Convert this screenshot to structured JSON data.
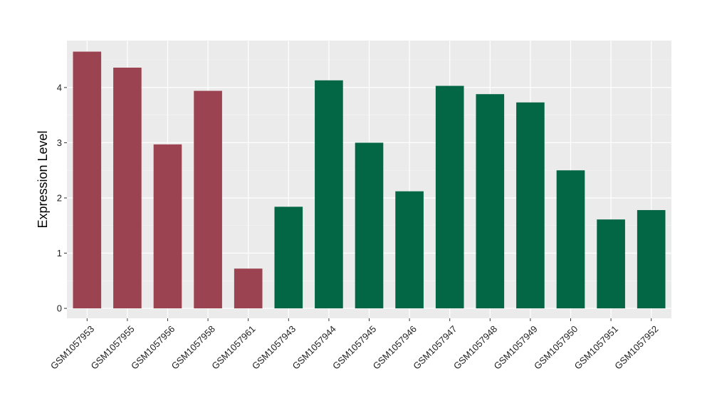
{
  "chart_data": {
    "type": "bar",
    "title": "",
    "xlabel": "",
    "ylabel": "Expression Level",
    "ylim": [
      -0.18,
      4.85
    ],
    "yticks": [
      0,
      1,
      2,
      3,
      4
    ],
    "grid": true,
    "legend": "none",
    "categories": [
      "GSM1057953",
      "GSM1057955",
      "GSM1057956",
      "GSM1057958",
      "GSM1057961",
      "GSM1057943",
      "GSM1057944",
      "GSM1057945",
      "GSM1057946",
      "GSM1057947",
      "GSM1057948",
      "GSM1057949",
      "GSM1057950",
      "GSM1057951",
      "GSM1057952"
    ],
    "values": [
      4.65,
      4.36,
      2.97,
      3.94,
      0.72,
      1.84,
      4.13,
      3.0,
      2.12,
      4.03,
      3.88,
      3.73,
      2.5,
      1.61,
      1.78
    ],
    "groups": [
      0,
      0,
      0,
      0,
      0,
      1,
      1,
      1,
      1,
      1,
      1,
      1,
      1,
      1,
      1
    ],
    "colors": {
      "group0": "#9b4350",
      "group1": "#036644",
      "panel_background": "#ebebeb",
      "grid_major": "#ffffff",
      "grid_minor": "#f5f5f5"
    }
  }
}
